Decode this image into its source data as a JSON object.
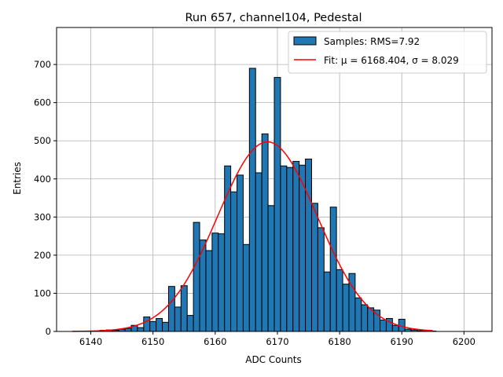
{
  "chart_data": {
    "type": "bar",
    "title": "Run 657, channel104, Pedestal",
    "xlabel": "ADC Counts",
    "ylabel": "Entries",
    "xlim": [
      1.0,
      2.0
    ],
    "ylim": [
      0,
      797
    ],
    "xticks": [
      6140,
      6150,
      6160,
      6170,
      6180,
      6190,
      6200
    ],
    "yticks": [
      0,
      100,
      200,
      300,
      400,
      500,
      600,
      700
    ],
    "grid": true,
    "legend_position": "top-right",
    "bin_width": 1,
    "bins": [
      {
        "x": 6142,
        "y": 3
      },
      {
        "x": 6143,
        "y": 4
      },
      {
        "x": 6144,
        "y": 3
      },
      {
        "x": 6145,
        "y": 6
      },
      {
        "x": 6146,
        "y": 8
      },
      {
        "x": 6147,
        "y": 16
      },
      {
        "x": 6148,
        "y": 10
      },
      {
        "x": 6149,
        "y": 38
      },
      {
        "x": 6150,
        "y": 26
      },
      {
        "x": 6151,
        "y": 34
      },
      {
        "x": 6152,
        "y": 24
      },
      {
        "x": 6153,
        "y": 118
      },
      {
        "x": 6154,
        "y": 64
      },
      {
        "x": 6155,
        "y": 120
      },
      {
        "x": 6156,
        "y": 42
      },
      {
        "x": 6157,
        "y": 286
      },
      {
        "x": 6158,
        "y": 240
      },
      {
        "x": 6159,
        "y": 212
      },
      {
        "x": 6160,
        "y": 258
      },
      {
        "x": 6161,
        "y": 256
      },
      {
        "x": 6162,
        "y": 434
      },
      {
        "x": 6163,
        "y": 366
      },
      {
        "x": 6164,
        "y": 410
      },
      {
        "x": 6165,
        "y": 228
      },
      {
        "x": 6166,
        "y": 690
      },
      {
        "x": 6167,
        "y": 416
      },
      {
        "x": 6168,
        "y": 518
      },
      {
        "x": 6169,
        "y": 330
      },
      {
        "x": 6170,
        "y": 666
      },
      {
        "x": 6171,
        "y": 434
      },
      {
        "x": 6172,
        "y": 430
      },
      {
        "x": 6173,
        "y": 446
      },
      {
        "x": 6174,
        "y": 436
      },
      {
        "x": 6175,
        "y": 452
      },
      {
        "x": 6176,
        "y": 336
      },
      {
        "x": 6177,
        "y": 272
      },
      {
        "x": 6178,
        "y": 156
      },
      {
        "x": 6179,
        "y": 326
      },
      {
        "x": 6180,
        "y": 162
      },
      {
        "x": 6181,
        "y": 124
      },
      {
        "x": 6182,
        "y": 152
      },
      {
        "x": 6183,
        "y": 88
      },
      {
        "x": 6184,
        "y": 70
      },
      {
        "x": 6185,
        "y": 62
      },
      {
        "x": 6186,
        "y": 56
      },
      {
        "x": 6187,
        "y": 30
      },
      {
        "x": 6188,
        "y": 34
      },
      {
        "x": 6189,
        "y": 16
      },
      {
        "x": 6190,
        "y": 32
      },
      {
        "x": 6191,
        "y": 6
      },
      {
        "x": 6192,
        "y": 4
      },
      {
        "x": 6193,
        "y": 2
      },
      {
        "x": 6194,
        "y": 1
      },
      {
        "x": 6195,
        "y": 1
      }
    ],
    "fit": {
      "mu": 6168.404,
      "sigma": 8.029,
      "amplitude": 497,
      "x_range": [
        6137,
        6195
      ]
    },
    "series": [
      {
        "name": "Samples: RMS=7.92",
        "color": "#1f77b4",
        "type": "histogram"
      },
      {
        "name": "Fit: μ = 6168.404, σ = 8.029",
        "color": "#ff0000",
        "type": "line"
      }
    ]
  }
}
